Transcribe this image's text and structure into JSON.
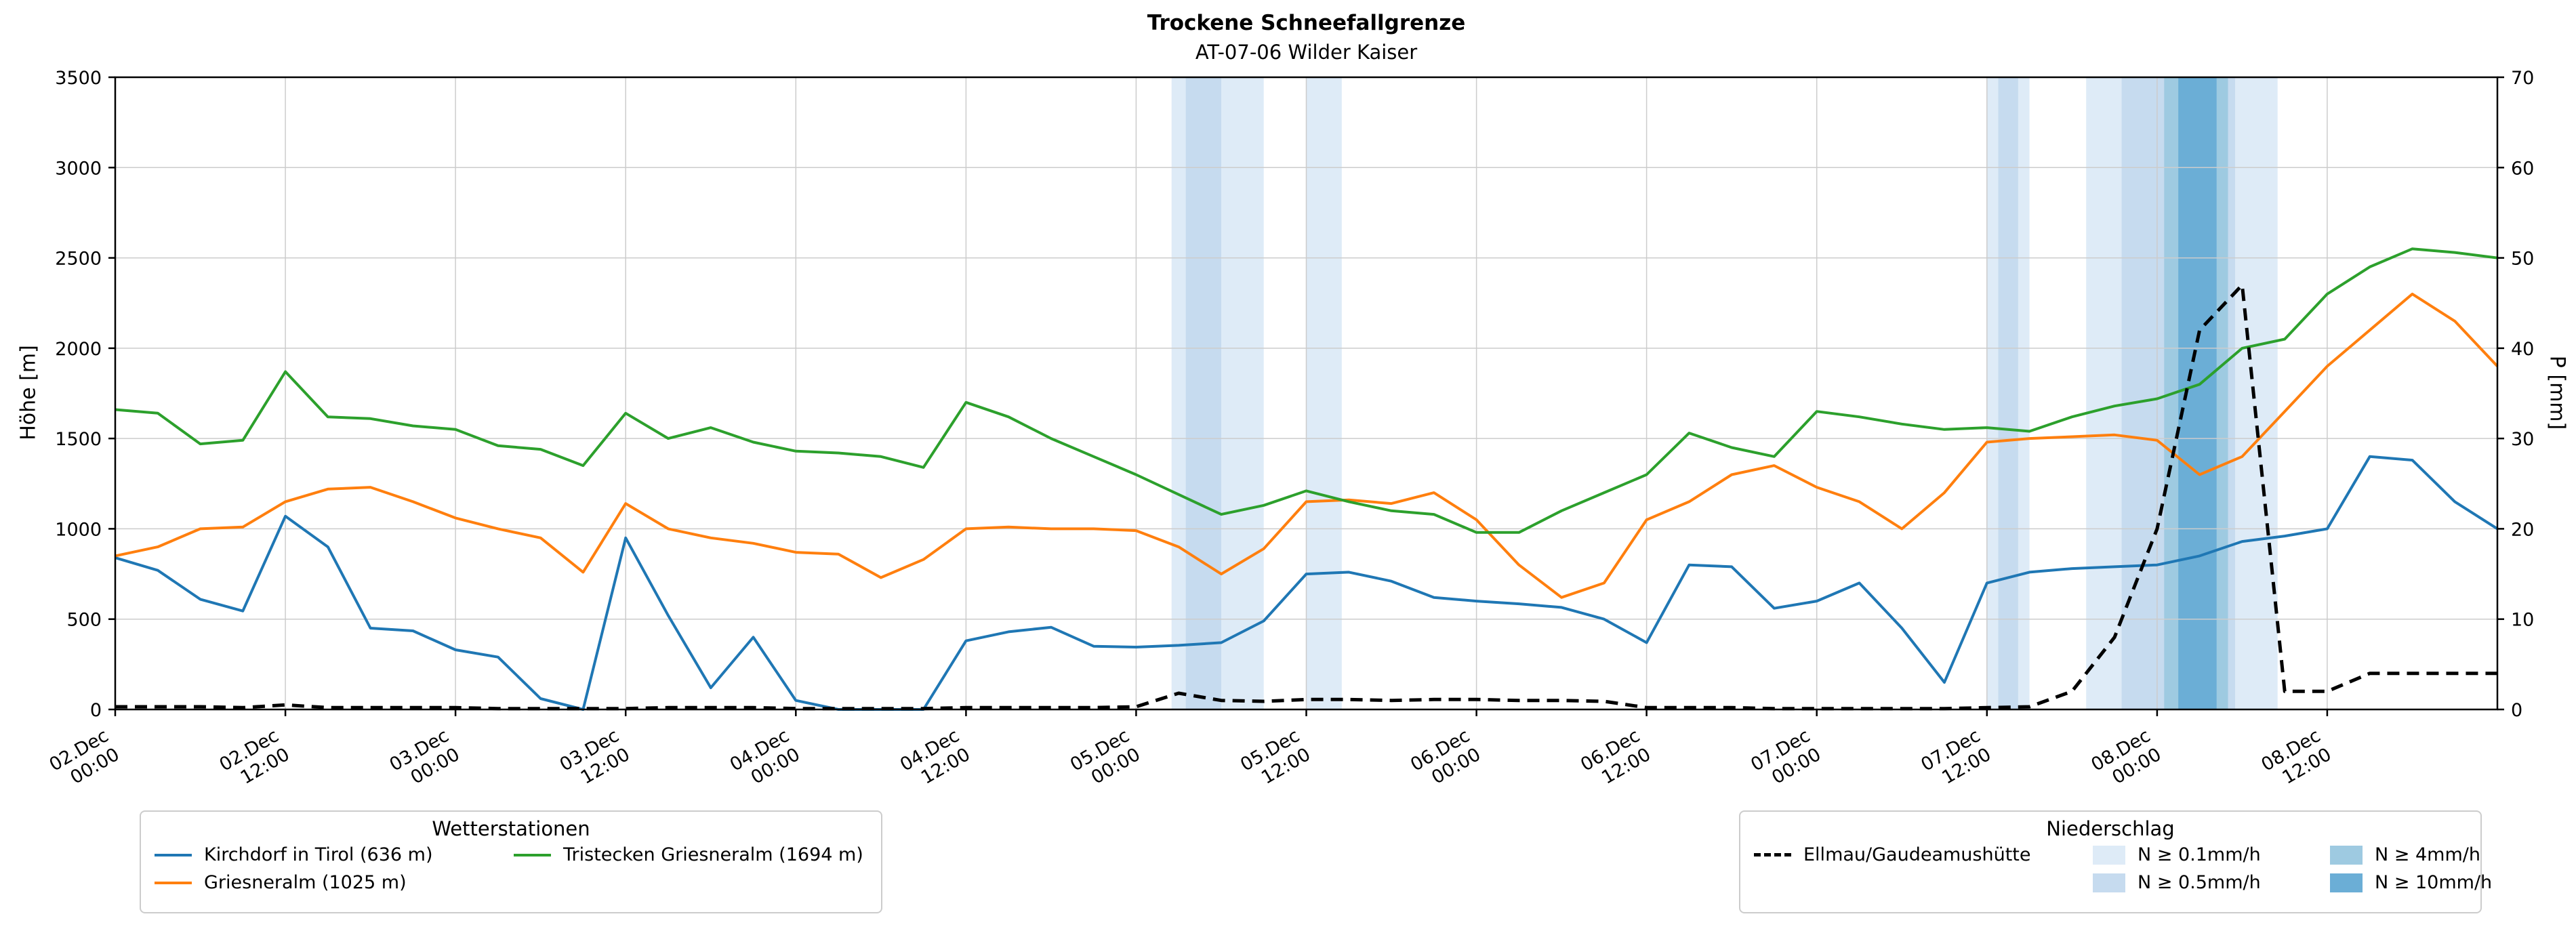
{
  "chart_data": {
    "type": "line",
    "title": "Trockene Schneefallgrenze",
    "subtitle": "AT-07-06 Wilder Kaiser",
    "ylabel_left": "Höhe [m]",
    "ylabel_right": "P [mm]",
    "ylim_left": [
      0,
      3500
    ],
    "ylim_right": [
      0,
      70
    ],
    "x_domain_hours": [
      0,
      168
    ],
    "x_start": "02.Dec 00:00",
    "grid": true,
    "y_left_ticks": [
      0,
      500,
      1000,
      1500,
      2000,
      2500,
      3000,
      3500
    ],
    "y_right_ticks": [
      0,
      10,
      20,
      30,
      40,
      50,
      60,
      70
    ],
    "x_tick_hours": [
      0,
      12,
      24,
      36,
      48,
      60,
      72,
      84,
      96,
      108,
      120,
      132,
      144,
      156
    ],
    "x_tick_labels": [
      [
        "02.Dec",
        "00:00"
      ],
      [
        "02.Dec",
        "12:00"
      ],
      [
        "03.Dec",
        "00:00"
      ],
      [
        "03.Dec",
        "12:00"
      ],
      [
        "04.Dec",
        "00:00"
      ],
      [
        "04.Dec",
        "12:00"
      ],
      [
        "05.Dec",
        "00:00"
      ],
      [
        "05.Dec",
        "12:00"
      ],
      [
        "06.Dec",
        "00:00"
      ],
      [
        "06.Dec",
        "12:00"
      ],
      [
        "07.Dec",
        "00:00"
      ],
      [
        "07.Dec",
        "12:00"
      ],
      [
        "08.Dec",
        "00:00"
      ],
      [
        "08.Dec",
        "12:00"
      ]
    ],
    "x_hours": [
      0,
      3,
      6,
      9,
      12,
      15,
      18,
      21,
      24,
      27,
      30,
      33,
      36,
      39,
      42,
      45,
      48,
      51,
      54,
      57,
      60,
      63,
      66,
      69,
      72,
      75,
      78,
      81,
      84,
      87,
      90,
      93,
      96,
      99,
      102,
      105,
      108,
      111,
      114,
      117,
      120,
      123,
      126,
      129,
      132,
      135,
      138,
      141,
      144,
      147,
      150,
      153,
      156,
      159,
      162,
      165,
      168
    ],
    "series": [
      {
        "name": "Kirchdorf in Tirol (636 m)",
        "color": "#1f77b4",
        "axis": "left",
        "style": "solid",
        "values": [
          840,
          770,
          610,
          545,
          1070,
          900,
          450,
          435,
          330,
          290,
          60,
          0,
          950,
          520,
          120,
          400,
          50,
          0,
          0,
          0,
          380,
          430,
          455,
          350,
          345,
          355,
          370,
          490,
          750,
          760,
          710,
          620,
          600,
          585,
          565,
          500,
          370,
          800,
          790,
          560,
          600,
          700,
          450,
          150,
          700,
          760,
          780,
          790,
          800,
          850,
          930,
          960,
          1000,
          1400,
          1380,
          1150,
          1000
        ]
      },
      {
        "name": "Griesneralm (1025 m)",
        "color": "#ff7f0e",
        "axis": "left",
        "style": "solid",
        "values": [
          850,
          900,
          1000,
          1010,
          1150,
          1220,
          1230,
          1150,
          1060,
          1000,
          950,
          760,
          1140,
          1000,
          950,
          920,
          870,
          860,
          730,
          830,
          1000,
          1010,
          1000,
          1000,
          990,
          900,
          750,
          890,
          1150,
          1160,
          1140,
          1200,
          1050,
          800,
          620,
          700,
          1050,
          1150,
          1300,
          1350,
          1230,
          1150,
          1000,
          1200,
          1480,
          1500,
          1510,
          1520,
          1490,
          1300,
          1400,
          1650,
          1900,
          2100,
          2300,
          2150,
          1900
        ]
      },
      {
        "name": "Tristecken Griesneralm  (1694 m)",
        "color": "#2ca02c",
        "axis": "left",
        "style": "solid",
        "values": [
          1660,
          1640,
          1470,
          1490,
          1870,
          1620,
          1610,
          1570,
          1550,
          1460,
          1440,
          1350,
          1640,
          1500,
          1560,
          1480,
          1430,
          1420,
          1400,
          1340,
          1700,
          1620,
          1500,
          1400,
          1300,
          1190,
          1080,
          1130,
          1210,
          1150,
          1100,
          1080,
          980,
          980,
          1100,
          1200,
          1300,
          1530,
          1450,
          1400,
          1650,
          1620,
          1580,
          1550,
          1560,
          1540,
          1620,
          1680,
          1720,
          1800,
          2000,
          2050,
          2300,
          2450,
          2550,
          2530,
          2500
        ]
      },
      {
        "name": "Ellmau/Gaudeamushütte",
        "color": "#000000",
        "axis": "right",
        "style": "dashed",
        "values": [
          0.3,
          0.3,
          0.3,
          0.2,
          0.5,
          0.2,
          0.2,
          0.2,
          0.2,
          0.1,
          0.1,
          0.1,
          0.1,
          0.2,
          0.2,
          0.2,
          0.1,
          0.1,
          0.1,
          0.1,
          0.2,
          0.2,
          0.2,
          0.2,
          0.3,
          1.8,
          1.0,
          0.9,
          1.1,
          1.1,
          1.0,
          1.1,
          1.1,
          1.0,
          1.0,
          0.9,
          0.2,
          0.2,
          0.2,
          0.1,
          0.1,
          0.1,
          0.1,
          0.1,
          0.2,
          0.3,
          2.0,
          8.0,
          20.0,
          42.0,
          47.0,
          2.0,
          2.0,
          4.0,
          4.0,
          4.0,
          4.0
        ]
      }
    ],
    "band_colors": {
      "p01": "#deebf7",
      "p05": "#c6dbef",
      "p4": "#9ecae1",
      "p10": "#6baed6"
    },
    "precip_bands": [
      {
        "start": 74.5,
        "end": 81,
        "level": "p01"
      },
      {
        "start": 75.5,
        "end": 78,
        "level": "p05"
      },
      {
        "start": 84,
        "end": 86.5,
        "level": "p01"
      },
      {
        "start": 132,
        "end": 135,
        "level": "p01"
      },
      {
        "start": 132.8,
        "end": 134.2,
        "level": "p05"
      },
      {
        "start": 139,
        "end": 152.5,
        "level": "p01"
      },
      {
        "start": 141.5,
        "end": 149.5,
        "level": "p05"
      },
      {
        "start": 144.5,
        "end": 149,
        "level": "p4"
      },
      {
        "start": 145.5,
        "end": 148.2,
        "level": "p10"
      }
    ]
  },
  "legends": {
    "stations": {
      "title": "Wetterstationen"
    },
    "precip": {
      "title": "Niederschlag",
      "levels": [
        {
          "label": "N ≥ 0.1mm/h",
          "color_key": "p01"
        },
        {
          "label": "N ≥ 0.5mm/h",
          "color_key": "p05"
        },
        {
          "label": "N ≥ 4mm/h",
          "color_key": "p4"
        },
        {
          "label": "N ≥ 10mm/h",
          "color_key": "p10"
        }
      ]
    }
  }
}
